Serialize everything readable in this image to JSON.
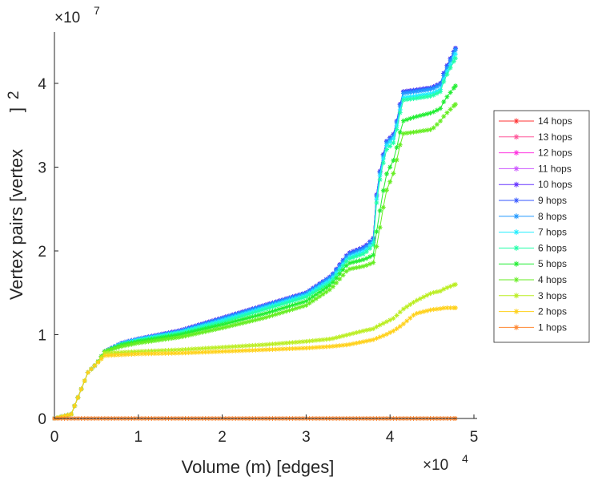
{
  "chart_data": {
    "type": "line",
    "title": "",
    "xlabel": "Volume (m) [edges]",
    "ylabel": "Vertex pairs [vertex",
    "ylabel_sup": "2",
    "ylabel_close": "]",
    "x_exponent": {
      "base": "×10",
      "power": "4"
    },
    "y_exponent": {
      "base": "×10",
      "power": "7"
    },
    "xlim": [
      0,
      5
    ],
    "ylim": [
      0,
      4.5
    ],
    "xticks": [
      "0",
      "1",
      "2",
      "3",
      "4",
      "5"
    ],
    "yticks": [
      "0",
      "1",
      "2",
      "3",
      "4"
    ],
    "grid": false,
    "legend_position": "right",
    "x": [
      0,
      0.2,
      0.3,
      0.4,
      0.5,
      0.6,
      0.8,
      1.0,
      1.5,
      2.0,
      2.5,
      3.0,
      3.3,
      3.5,
      3.7,
      3.8,
      3.85,
      3.95,
      4.05,
      4.15,
      4.3,
      4.5,
      4.6,
      4.65,
      4.78
    ],
    "series": [
      {
        "name": "14 hops",
        "color": "#ff3333",
        "y": [
          0,
          0.05,
          0.3,
          0.55,
          0.65,
          0.8,
          0.9,
          0.95,
          1.05,
          1.2,
          1.35,
          1.5,
          1.7,
          1.97,
          2.05,
          2.15,
          2.8,
          3.3,
          3.4,
          3.9,
          3.92,
          3.95,
          4.0,
          4.15,
          4.42
        ]
      },
      {
        "name": "13 hops",
        "color": "#ff5599",
        "y": [
          0,
          0.05,
          0.3,
          0.55,
          0.65,
          0.8,
          0.9,
          0.95,
          1.05,
          1.2,
          1.35,
          1.5,
          1.7,
          1.97,
          2.05,
          2.15,
          2.8,
          3.3,
          3.4,
          3.9,
          3.92,
          3.95,
          4.0,
          4.15,
          4.42
        ]
      },
      {
        "name": "12 hops",
        "color": "#ff33e0",
        "y": [
          0,
          0.05,
          0.3,
          0.55,
          0.65,
          0.8,
          0.9,
          0.95,
          1.05,
          1.2,
          1.35,
          1.5,
          1.7,
          1.97,
          2.05,
          2.15,
          2.8,
          3.3,
          3.4,
          3.9,
          3.92,
          3.95,
          4.0,
          4.15,
          4.42
        ]
      },
      {
        "name": "11 hops",
        "color": "#cc55ff",
        "y": [
          0,
          0.05,
          0.3,
          0.55,
          0.65,
          0.8,
          0.9,
          0.95,
          1.05,
          1.2,
          1.35,
          1.5,
          1.7,
          1.97,
          2.05,
          2.15,
          2.8,
          3.3,
          3.4,
          3.9,
          3.92,
          3.95,
          4.0,
          4.15,
          4.42
        ]
      },
      {
        "name": "10 hops",
        "color": "#6633ff",
        "y": [
          0,
          0.05,
          0.3,
          0.55,
          0.65,
          0.8,
          0.9,
          0.95,
          1.05,
          1.2,
          1.35,
          1.5,
          1.7,
          1.97,
          2.05,
          2.15,
          2.8,
          3.3,
          3.4,
          3.9,
          3.92,
          3.95,
          4.0,
          4.15,
          4.42
        ]
      },
      {
        "name": "9 hops",
        "color": "#3355ff",
        "y": [
          0,
          0.05,
          0.3,
          0.55,
          0.65,
          0.8,
          0.9,
          0.95,
          1.05,
          1.2,
          1.35,
          1.5,
          1.7,
          1.97,
          2.05,
          2.15,
          2.8,
          3.3,
          3.4,
          3.9,
          3.92,
          3.95,
          4.0,
          4.15,
          4.42
        ]
      },
      {
        "name": "8 hops",
        "color": "#2299ff",
        "y": [
          0,
          0.05,
          0.3,
          0.55,
          0.65,
          0.8,
          0.9,
          0.95,
          1.04,
          1.19,
          1.34,
          1.49,
          1.69,
          1.95,
          2.03,
          2.13,
          2.78,
          3.28,
          3.38,
          3.88,
          3.9,
          3.93,
          3.98,
          4.12,
          4.4
        ]
      },
      {
        "name": "7 hops",
        "color": "#22eeff",
        "y": [
          0,
          0.05,
          0.3,
          0.55,
          0.65,
          0.8,
          0.89,
          0.94,
          1.03,
          1.17,
          1.32,
          1.47,
          1.66,
          1.92,
          2.0,
          2.1,
          2.75,
          3.25,
          3.35,
          3.83,
          3.85,
          3.88,
          3.93,
          4.08,
          4.35
        ]
      },
      {
        "name": "6 hops",
        "color": "#22ffaa",
        "y": [
          0,
          0.05,
          0.3,
          0.55,
          0.65,
          0.8,
          0.88,
          0.93,
          1.02,
          1.15,
          1.3,
          1.45,
          1.63,
          1.9,
          1.97,
          2.07,
          2.7,
          3.2,
          3.3,
          3.8,
          3.82,
          3.85,
          3.9,
          4.05,
          4.3
        ]
      },
      {
        "name": "5 hops",
        "color": "#22ee33",
        "y": [
          0,
          0.05,
          0.3,
          0.55,
          0.65,
          0.8,
          0.88,
          0.92,
          1.0,
          1.12,
          1.25,
          1.4,
          1.6,
          1.85,
          1.9,
          1.95,
          2.3,
          2.9,
          3.1,
          3.55,
          3.6,
          3.65,
          3.7,
          3.8,
          3.97
        ]
      },
      {
        "name": "4 hops",
        "color": "#66ee22",
        "y": [
          0,
          0.05,
          0.3,
          0.55,
          0.65,
          0.8,
          0.86,
          0.9,
          0.97,
          1.08,
          1.2,
          1.35,
          1.55,
          1.78,
          1.82,
          1.86,
          2.1,
          2.7,
          2.95,
          3.4,
          3.42,
          3.45,
          3.55,
          3.62,
          3.75
        ]
      },
      {
        "name": "3 hops",
        "color": "#bbee22",
        "y": [
          0,
          0.05,
          0.3,
          0.55,
          0.65,
          0.78,
          0.79,
          0.8,
          0.82,
          0.85,
          0.88,
          0.92,
          0.95,
          1.0,
          1.05,
          1.07,
          1.1,
          1.15,
          1.2,
          1.3,
          1.4,
          1.5,
          1.52,
          1.55,
          1.6
        ]
      },
      {
        "name": "2 hops",
        "color": "#ffd11a",
        "y": [
          0,
          0.05,
          0.3,
          0.55,
          0.65,
          0.75,
          0.76,
          0.77,
          0.78,
          0.8,
          0.82,
          0.84,
          0.86,
          0.88,
          0.92,
          0.94,
          0.96,
          1.0,
          1.05,
          1.12,
          1.25,
          1.3,
          1.31,
          1.32,
          1.32
        ]
      },
      {
        "name": "1 hops",
        "color": "#ff8833",
        "y": [
          0,
          0,
          0,
          0,
          0,
          0,
          0,
          0,
          0,
          0,
          0,
          0,
          0,
          0,
          0,
          0,
          0,
          0,
          0,
          0,
          0,
          0,
          0,
          0,
          0
        ]
      }
    ]
  }
}
